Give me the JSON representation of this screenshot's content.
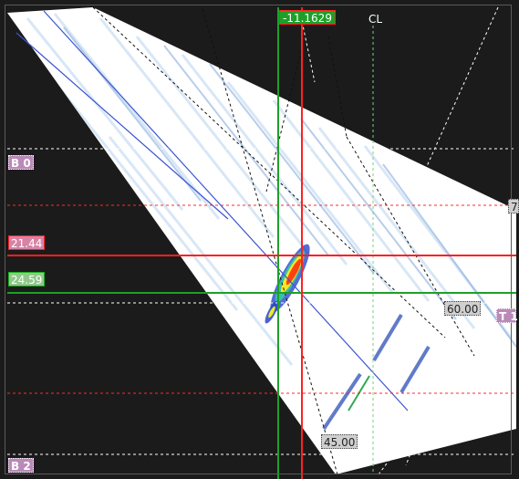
{
  "overlay": {
    "cursor_readout": "-11.1629",
    "centerline_label": "CL",
    "depth_label_top": "B 0",
    "depth_label_bottom": "B 2",
    "red_cursor_value": "21.44",
    "green_cursor_value": "24.59",
    "angle_60": "60.00",
    "angle_45": "45.00",
    "angle_edge_partial": "7",
    "thickness_label_partial": "T 1"
  },
  "colors": {
    "background": "#1b1b1b",
    "red_cursor": "#ff2020",
    "green_cursor": "#18b018",
    "beam_axis": "#3a55d0",
    "grid_white": "#ffffff",
    "grid_red": "#ff2a2a",
    "purple_tag": "#b98ab7"
  }
}
